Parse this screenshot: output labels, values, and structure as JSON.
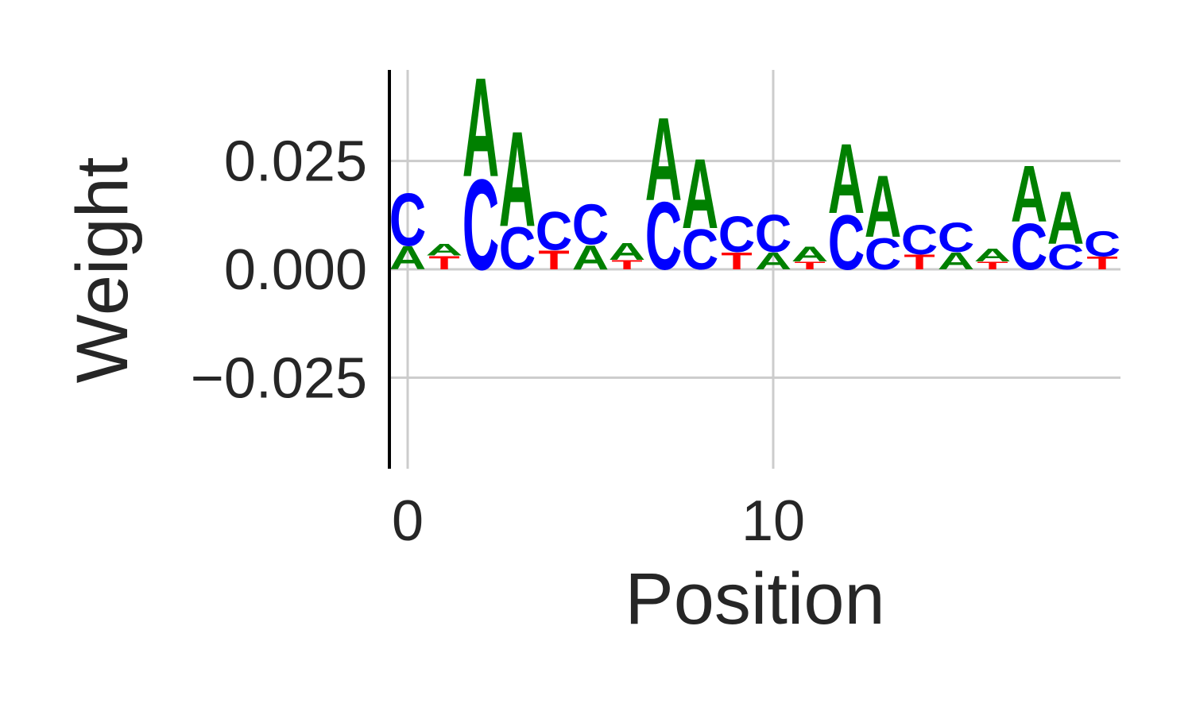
{
  "chart_data": {
    "type": "sequence-logo",
    "xlabel": "Position",
    "ylabel": "Weight",
    "xlim": [
      -0.5,
      19.5
    ],
    "ylim": [
      -0.046,
      0.046
    ],
    "xticks": [
      {
        "value": 0,
        "label": "0"
      },
      {
        "value": 10,
        "label": "10"
      }
    ],
    "yticks": [
      {
        "value": -0.025,
        "label": "−0.025"
      },
      {
        "value": 0.0,
        "label": "0.000"
      },
      {
        "value": 0.025,
        "label": "0.025"
      }
    ],
    "grid": true,
    "colors": {
      "A": "#008000",
      "C": "#0000ff",
      "T": "#ff0000",
      "grid": "#cccccc",
      "text": "#262626"
    },
    "positions": [
      {
        "x": 0,
        "stack": [
          {
            "base": "A",
            "value": 0.0055
          },
          {
            "base": "C",
            "value": 0.0125
          }
        ]
      },
      {
        "x": 1,
        "stack": [
          {
            "base": "T",
            "value": 0.0032
          },
          {
            "base": "A",
            "value": 0.0028
          }
        ]
      },
      {
        "x": 2,
        "stack": [
          {
            "base": "C",
            "value": 0.0215
          },
          {
            "base": "A",
            "value": 0.0235
          }
        ]
      },
      {
        "x": 3,
        "stack": [
          {
            "base": "C",
            "value": 0.01
          },
          {
            "base": "A",
            "value": 0.0226
          }
        ]
      },
      {
        "x": 4,
        "stack": [
          {
            "base": "T",
            "value": 0.0045
          },
          {
            "base": "C",
            "value": 0.009
          }
        ]
      },
      {
        "x": 5,
        "stack": [
          {
            "base": "A",
            "value": 0.0058
          },
          {
            "base": "C",
            "value": 0.0095
          }
        ]
      },
      {
        "x": 6,
        "stack": [
          {
            "base": "T",
            "value": 0.0022
          },
          {
            "base": "A",
            "value": 0.004
          }
        ]
      },
      {
        "x": 7,
        "stack": [
          {
            "base": "C",
            "value": 0.016
          },
          {
            "base": "A",
            "value": 0.0197
          }
        ]
      },
      {
        "x": 8,
        "stack": [
          {
            "base": "C",
            "value": 0.0095
          },
          {
            "base": "A",
            "value": 0.0165
          }
        ]
      },
      {
        "x": 9,
        "stack": [
          {
            "base": "T",
            "value": 0.004
          },
          {
            "base": "C",
            "value": 0.0085
          }
        ]
      },
      {
        "x": 10,
        "stack": [
          {
            "base": "A",
            "value": 0.004
          },
          {
            "base": "C",
            "value": 0.0088
          }
        ]
      },
      {
        "x": 11,
        "stack": [
          {
            "base": "T",
            "value": 0.0018
          },
          {
            "base": "A",
            "value": 0.0035
          }
        ]
      },
      {
        "x": 12,
        "stack": [
          {
            "base": "C",
            "value": 0.013
          },
          {
            "base": "A",
            "value": 0.0165
          }
        ]
      },
      {
        "x": 13,
        "stack": [
          {
            "base": "C",
            "value": 0.0075
          },
          {
            "base": "A",
            "value": 0.0147
          }
        ]
      },
      {
        "x": 14,
        "stack": [
          {
            "base": "T",
            "value": 0.0035
          },
          {
            "base": "C",
            "value": 0.007
          }
        ]
      },
      {
        "x": 15,
        "stack": [
          {
            "base": "A",
            "value": 0.004
          },
          {
            "base": "C",
            "value": 0.007
          }
        ]
      },
      {
        "x": 16,
        "stack": [
          {
            "base": "T",
            "value": 0.0018
          },
          {
            "base": "A",
            "value": 0.003
          }
        ]
      },
      {
        "x": 17,
        "stack": [
          {
            "base": "C",
            "value": 0.011
          },
          {
            "base": "A",
            "value": 0.0133
          }
        ]
      },
      {
        "x": 18,
        "stack": [
          {
            "base": "C",
            "value": 0.006
          },
          {
            "base": "A",
            "value": 0.0125
          }
        ]
      },
      {
        "x": 19,
        "stack": [
          {
            "base": "T",
            "value": 0.003
          },
          {
            "base": "C",
            "value": 0.006
          }
        ]
      }
    ]
  }
}
